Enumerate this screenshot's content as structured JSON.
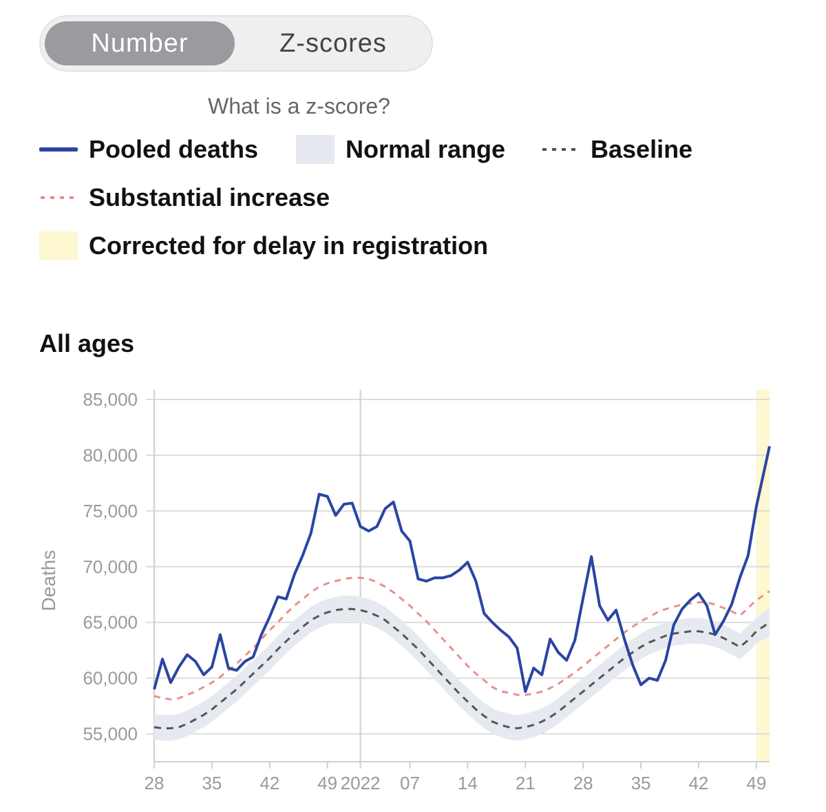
{
  "toggle": {
    "number_label": "Number",
    "zscores_label": "Z-scores"
  },
  "help_link": "What is a z-score?",
  "legend": {
    "pooled": {
      "label": "Pooled deaths",
      "color": "#2a45a3"
    },
    "normal": {
      "label": "Normal range",
      "color": "#e6e9f0"
    },
    "baseline": {
      "label": "Baseline",
      "color": "#555555"
    },
    "substantial": {
      "label": "Substantial increase",
      "color": "#e8908a"
    },
    "corrected": {
      "label": "Corrected for delay in registration",
      "color": "#fdf7d2"
    }
  },
  "chart_data": {
    "type": "line",
    "title": "All ages",
    "ylabel": "Deaths",
    "ylim": [
      52500,
      85000
    ],
    "yticks": [
      55000,
      60000,
      65000,
      70000,
      75000,
      80000,
      85000
    ],
    "ytick_labels": [
      "55,000",
      "60,000",
      "65,000",
      "70,000",
      "75,000",
      "80,000",
      "85,000"
    ],
    "xlim": [
      28,
      102.6
    ],
    "xticks": [
      {
        "x": 28,
        "label": "28"
      },
      {
        "x": 35,
        "label": "35"
      },
      {
        "x": 42,
        "label": "42"
      },
      {
        "x": 49,
        "label": "49"
      },
      {
        "x": 53,
        "label": "2022"
      },
      {
        "x": 59,
        "label": "07"
      },
      {
        "x": 66,
        "label": "14"
      },
      {
        "x": 73,
        "label": "21"
      },
      {
        "x": 80,
        "label": "28"
      },
      {
        "x": 87,
        "label": "35"
      },
      {
        "x": 94,
        "label": "42"
      },
      {
        "x": 101,
        "label": "49"
      }
    ],
    "year_divider_x": 53,
    "corrected_range": [
      101,
      102.6
    ],
    "series": [
      {
        "name": "Pooled deaths",
        "x": [
          28,
          29,
          30,
          31,
          32,
          33,
          34,
          35,
          36,
          37,
          38,
          39,
          40,
          41,
          42,
          43,
          44,
          45,
          46,
          47,
          48,
          49,
          50,
          51,
          52,
          53,
          54,
          55,
          56,
          57,
          58,
          59,
          60,
          61,
          62,
          63,
          64,
          65,
          66,
          67,
          68,
          69,
          70,
          71,
          72,
          73,
          74,
          75,
          76,
          77,
          78,
          79,
          80,
          81,
          82,
          83,
          84,
          85,
          86,
          87,
          88,
          89,
          90,
          91,
          92,
          93,
          94,
          95,
          96,
          97,
          98,
          99,
          100,
          101,
          102.6
        ],
        "y": [
          59000,
          61700,
          59600,
          61000,
          62100,
          61500,
          60300,
          61000,
          63900,
          60900,
          60700,
          61500,
          61900,
          63900,
          65500,
          67300,
          67100,
          69300,
          71000,
          73000,
          76500,
          76300,
          74600,
          75600,
          75700,
          73600,
          73200,
          73600,
          75200,
          75800,
          73200,
          72300,
          68900,
          68700,
          69000,
          69000,
          69200,
          69700,
          70400,
          68700,
          65800,
          65000,
          64300,
          63700,
          62700,
          58800,
          60900,
          60300,
          63500,
          62300,
          61600,
          63400,
          67200,
          70900,
          66500,
          65200,
          66100,
          63500,
          61200,
          59400,
          60000,
          59800,
          61600,
          64800,
          66200,
          67000,
          67600,
          66500,
          63900,
          65100,
          66600,
          69000,
          71000,
          75400,
          80800
        ]
      },
      {
        "name": "Baseline",
        "x": [
          28,
          29,
          30,
          31,
          32,
          33,
          34,
          35,
          36,
          37,
          38,
          39,
          40,
          41,
          42,
          43,
          44,
          45,
          46,
          47,
          48,
          49,
          50,
          51,
          52,
          53,
          54,
          55,
          56,
          57,
          58,
          59,
          60,
          61,
          62,
          63,
          64,
          65,
          66,
          67,
          68,
          69,
          70,
          71,
          72,
          73,
          74,
          75,
          76,
          77,
          78,
          79,
          80,
          81,
          82,
          83,
          84,
          85,
          86,
          87,
          88,
          89,
          90,
          91,
          92,
          93,
          94,
          95,
          96,
          97,
          98,
          99,
          100,
          101,
          102.6
        ],
        "y": [
          55600,
          55500,
          55500,
          55600,
          55900,
          56300,
          56700,
          57200,
          57800,
          58400,
          59000,
          59700,
          60400,
          61100,
          61800,
          62600,
          63300,
          64000,
          64600,
          65200,
          65600,
          65900,
          66100,
          66200,
          66200,
          66100,
          65900,
          65600,
          65200,
          64600,
          64000,
          63300,
          62600,
          61800,
          61000,
          60200,
          59400,
          58600,
          57900,
          57200,
          56600,
          56100,
          55800,
          55600,
          55500,
          55600,
          55800,
          56100,
          56500,
          57000,
          57600,
          58200,
          58800,
          59400,
          60000,
          60600,
          61200,
          61800,
          62300,
          62800,
          63200,
          63500,
          63800,
          64000,
          64100,
          64200,
          64200,
          64100,
          63900,
          63600,
          63200,
          62800,
          63400,
          64200,
          65000
        ]
      },
      {
        "name": "Substantial increase",
        "x": [
          28,
          29,
          30,
          31,
          32,
          33,
          34,
          35,
          36,
          37,
          38,
          39,
          40,
          41,
          42,
          43,
          44,
          45,
          46,
          47,
          48,
          49,
          50,
          51,
          52,
          53,
          54,
          55,
          56,
          57,
          58,
          59,
          60,
          61,
          62,
          63,
          64,
          65,
          66,
          67,
          68,
          69,
          70,
          71,
          72,
          73,
          74,
          75,
          76,
          77,
          78,
          79,
          80,
          81,
          82,
          83,
          84,
          85,
          86,
          87,
          88,
          89,
          90,
          91,
          92,
          93,
          94,
          95,
          96,
          97,
          98,
          99,
          100,
          101,
          102.6
        ],
        "y": [
          58400,
          58200,
          58100,
          58200,
          58500,
          58800,
          59200,
          59600,
          60100,
          60700,
          61300,
          62000,
          62700,
          63500,
          64300,
          65000,
          65800,
          66500,
          67100,
          67700,
          68200,
          68500,
          68700,
          68900,
          69000,
          69000,
          68900,
          68600,
          68200,
          67700,
          67100,
          66500,
          65800,
          65100,
          64300,
          63500,
          62700,
          61900,
          61100,
          60400,
          59800,
          59200,
          58800,
          58700,
          58500,
          58500,
          58600,
          58800,
          59100,
          59500,
          60000,
          60500,
          61100,
          61700,
          62300,
          62900,
          63500,
          64100,
          64600,
          65100,
          65500,
          65900,
          66200,
          66400,
          66600,
          66700,
          66800,
          66800,
          66600,
          66300,
          66000,
          65600,
          66300,
          67000,
          67800
        ]
      }
    ],
    "normal_range": {
      "x": [
        28,
        29,
        30,
        31,
        32,
        33,
        34,
        35,
        36,
        37,
        38,
        39,
        40,
        41,
        42,
        43,
        44,
        45,
        46,
        47,
        48,
        49,
        50,
        51,
        52,
        53,
        54,
        55,
        56,
        57,
        58,
        59,
        60,
        61,
        62,
        63,
        64,
        65,
        66,
        67,
        68,
        69,
        70,
        71,
        72,
        73,
        74,
        75,
        76,
        77,
        78,
        79,
        80,
        81,
        82,
        83,
        84,
        85,
        86,
        87,
        88,
        89,
        90,
        91,
        92,
        93,
        94,
        95,
        96,
        97,
        98,
        99,
        100,
        101,
        102.6
      ],
      "lower": [
        54500,
        54400,
        54400,
        54500,
        54800,
        55200,
        55600,
        56100,
        56700,
        57300,
        57900,
        58600,
        59300,
        60000,
        60700,
        61500,
        62200,
        62900,
        63500,
        64100,
        64500,
        64800,
        65000,
        65100,
        65100,
        65000,
        64800,
        64500,
        64100,
        63500,
        62900,
        62200,
        61500,
        60700,
        59900,
        59100,
        58300,
        57500,
        56800,
        56100,
        55500,
        55000,
        54700,
        54500,
        54400,
        54500,
        54700,
        55000,
        55400,
        55900,
        56500,
        57100,
        57700,
        58300,
        58900,
        59500,
        60100,
        60700,
        61200,
        61700,
        62100,
        62400,
        62700,
        62900,
        63000,
        63100,
        63100,
        63000,
        62800,
        62500,
        62100,
        61700,
        62300,
        63100,
        63800
      ],
      "upper": [
        56800,
        56700,
        56700,
        56800,
        57100,
        57500,
        57900,
        58400,
        59000,
        59600,
        60200,
        60900,
        61600,
        62300,
        63000,
        63800,
        64500,
        65200,
        65800,
        66400,
        66800,
        67100,
        67300,
        67400,
        67400,
        67300,
        67100,
        66800,
        66400,
        65800,
        65200,
        64500,
        63800,
        63000,
        62200,
        61400,
        60600,
        59800,
        59100,
        58400,
        57800,
        57300,
        57000,
        56800,
        56700,
        56800,
        57000,
        57300,
        57700,
        58200,
        58800,
        59400,
        60000,
        60600,
        61200,
        61800,
        62400,
        63000,
        63500,
        64000,
        64400,
        64700,
        65000,
        65200,
        65300,
        65400,
        65400,
        65300,
        65100,
        64800,
        64400,
        64000,
        64700,
        65400,
        66300
      ]
    }
  }
}
